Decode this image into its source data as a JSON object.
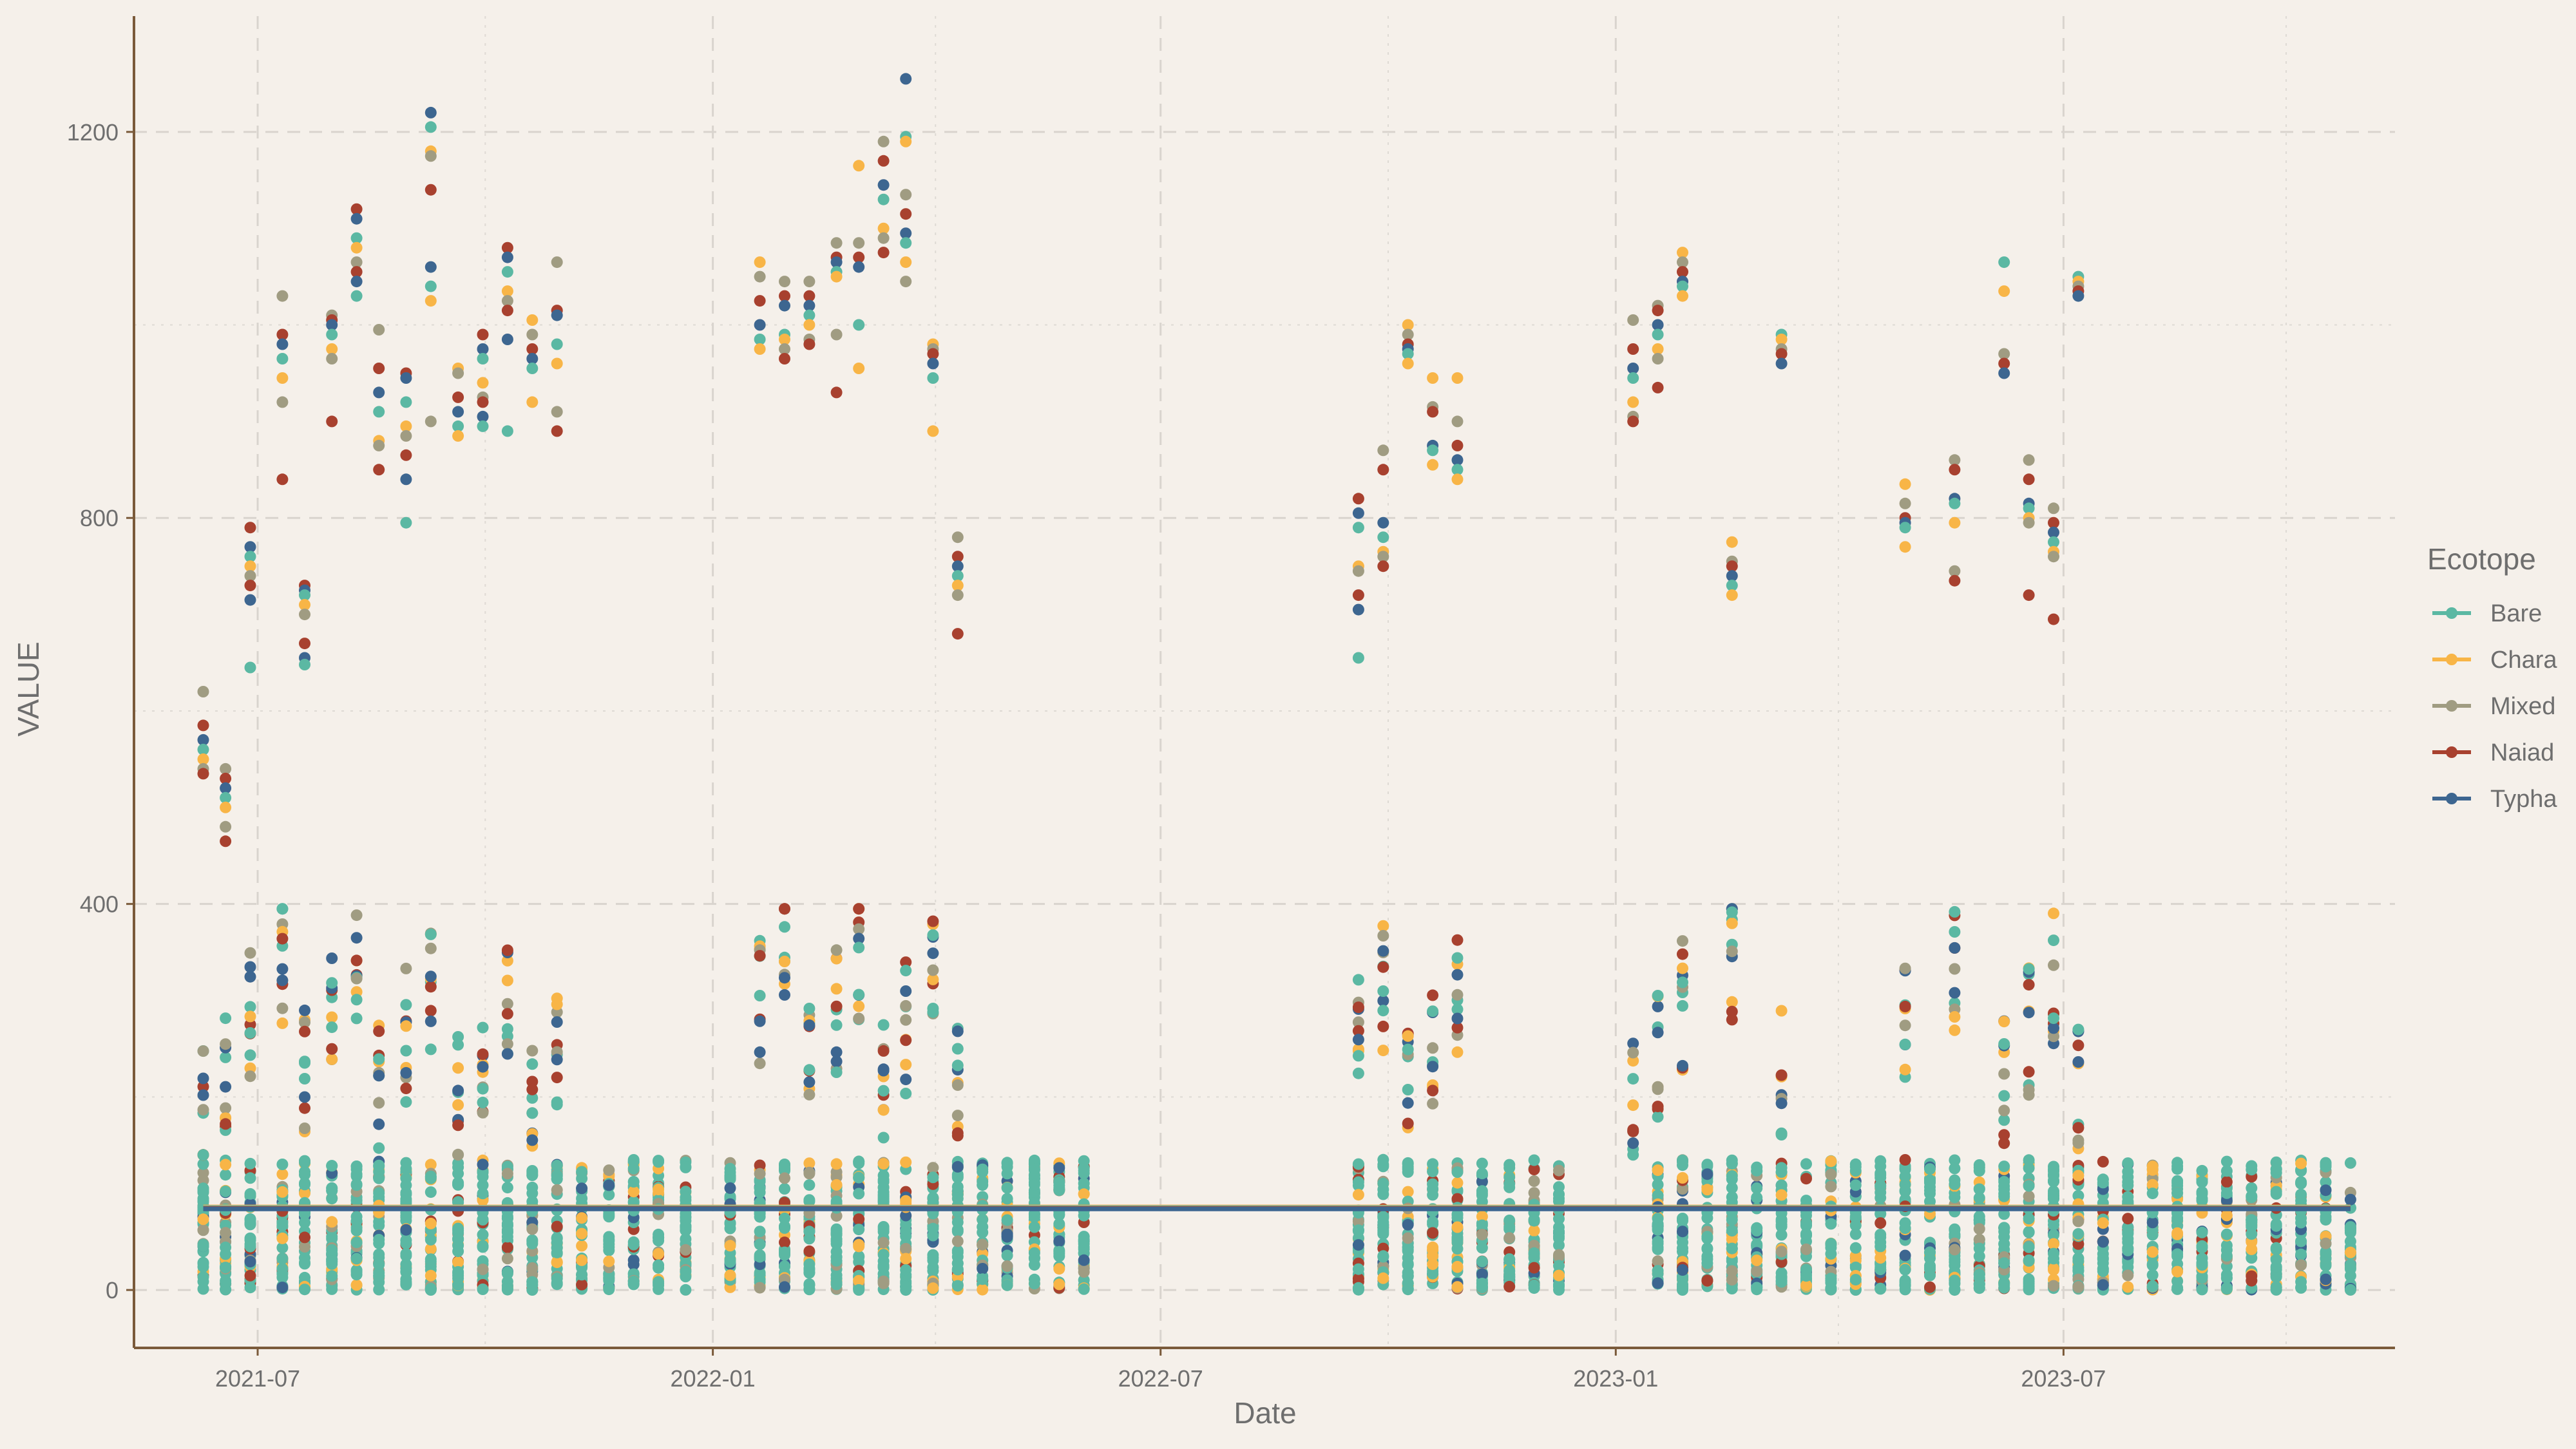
{
  "chart_data": {
    "type": "scatter",
    "xlabel": "Date",
    "ylabel": "VALUE",
    "x_axis_type": "date",
    "xlim": [
      "2021-05-12",
      "2023-11-12"
    ],
    "ylim": [
      -60,
      1320
    ],
    "x_ticks": [
      "2021-07-01",
      "2022-01-01",
      "2022-07-01",
      "2023-01-01",
      "2023-07-01"
    ],
    "x_tick_labels": [
      "2021-07",
      "2022-01",
      "2022-07",
      "2023-01",
      "2023-07"
    ],
    "y_ticks": [
      0,
      400,
      800,
      1200
    ],
    "y_tick_labels": [
      "0",
      "400",
      "800",
      "1200"
    ],
    "grid": true,
    "legend": {
      "title": "Ecotope",
      "position": "right"
    },
    "colors": {
      "Bare": "#5bb8a3",
      "Chara": "#f8b547",
      "Mixed": "#a09c82",
      "Naiad": "#a8412f",
      "Typha": "#3d6690",
      "background": "#f5f0ea",
      "axis": "#7a5a3a"
    },
    "sampling_dates": [
      "2021-06-09",
      "2021-06-18",
      "2021-06-28",
      "2021-07-11",
      "2021-07-20",
      "2021-07-31",
      "2021-08-10",
      "2021-08-19",
      "2021-08-30",
      "2021-09-09",
      "2021-09-20",
      "2021-09-30",
      "2021-10-10",
      "2021-10-20",
      "2021-10-30",
      "2021-11-09",
      "2021-11-20",
      "2021-11-30",
      "2021-12-10",
      "2021-12-21",
      "2022-01-08",
      "2022-01-20",
      "2022-01-30",
      "2022-02-09",
      "2022-02-20",
      "2022-03-01",
      "2022-03-11",
      "2022-03-20",
      "2022-03-31",
      "2022-04-10",
      "2022-04-20",
      "2022-04-30",
      "2022-05-11",
      "2022-05-21",
      "2022-05-31",
      "2022-09-19",
      "2022-09-29",
      "2022-10-09",
      "2022-10-19",
      "2022-10-29",
      "2022-11-08",
      "2022-11-19",
      "2022-11-29",
      "2022-12-09",
      "2023-01-18",
      "2023-01-28",
      "2023-02-07",
      "2023-02-17",
      "2023-02-27",
      "2023-03-09",
      "2023-03-19",
      "2023-03-29",
      "2023-04-08",
      "2023-04-18",
      "2023-04-28",
      "2023-05-08",
      "2023-05-18",
      "2023-05-28",
      "2023-06-07",
      "2023-06-17",
      "2023-06-27",
      "2023-07-07",
      "2023-07-17",
      "2023-07-27",
      "2023-08-06",
      "2023-08-16",
      "2023-08-26",
      "2023-09-05",
      "2023-09-15",
      "2023-09-25",
      "2023-10-05",
      "2023-10-15",
      "2023-10-25"
    ],
    "upper_cluster": [
      {
        "date": "2021-06-09",
        "values": [
          620,
          585,
          570,
          560,
          550,
          540,
          535
        ]
      },
      {
        "date": "2021-06-18",
        "values": [
          540,
          530,
          520,
          510,
          500,
          480,
          465
        ]
      },
      {
        "date": "2021-06-28",
        "values": [
          790,
          770,
          760,
          750,
          740,
          730,
          715,
          645
        ]
      },
      {
        "date": "2021-07-11",
        "values": [
          1030,
          990,
          980,
          965,
          945,
          920,
          840
        ]
      },
      {
        "date": "2021-07-20",
        "values": [
          730,
          725,
          720,
          710,
          700,
          670,
          655,
          648
        ]
      },
      {
        "date": "2021-07-31",
        "values": [
          1010,
          1005,
          1000,
          990,
          975,
          965,
          900
        ]
      },
      {
        "date": "2021-08-10",
        "values": [
          1120,
          1110,
          1090,
          1080,
          1065,
          1055,
          1045,
          1030
        ]
      },
      {
        "date": "2021-08-19",
        "values": [
          995,
          955,
          930,
          910,
          880,
          875,
          850
        ]
      },
      {
        "date": "2021-08-30",
        "values": [
          950,
          945,
          920,
          895,
          885,
          865,
          840,
          795
        ]
      },
      {
        "date": "2021-09-09",
        "values": [
          1220,
          1205,
          1180,
          1175,
          1140,
          1060,
          1040,
          1025,
          900
        ]
      },
      {
        "date": "2021-09-20",
        "values": [
          955,
          950,
          925,
          910,
          895,
          885
        ]
      },
      {
        "date": "2021-09-30",
        "values": [
          990,
          975,
          965,
          940,
          925,
          920,
          905,
          895
        ]
      },
      {
        "date": "2021-10-10",
        "values": [
          1080,
          1070,
          1055,
          1035,
          1025,
          1015,
          985,
          890
        ]
      },
      {
        "date": "2021-10-20",
        "values": [
          1005,
          990,
          975,
          965,
          955,
          920
        ]
      },
      {
        "date": "2021-10-30",
        "values": [
          1065,
          1015,
          1010,
          980,
          960,
          910,
          890
        ]
      },
      {
        "date": "2022-01-20",
        "values": [
          1065,
          1050,
          1025,
          1000,
          985,
          975
        ]
      },
      {
        "date": "2022-01-30",
        "values": [
          1045,
          1030,
          1020,
          990,
          985,
          975,
          965
        ]
      },
      {
        "date": "2022-02-09",
        "values": [
          1045,
          1030,
          1020,
          1010,
          1000,
          985,
          980
        ]
      },
      {
        "date": "2022-02-20",
        "values": [
          1085,
          1070,
          1065,
          1055,
          1050,
          990,
          930
        ]
      },
      {
        "date": "2022-03-01",
        "values": [
          1165,
          1085,
          1070,
          1060,
          1000,
          955
        ]
      },
      {
        "date": "2022-03-11",
        "values": [
          1190,
          1170,
          1145,
          1130,
          1100,
          1090,
          1075
        ]
      },
      {
        "date": "2022-03-20",
        "values": [
          1255,
          1195,
          1190,
          1135,
          1115,
          1095,
          1085,
          1065,
          1045
        ]
      },
      {
        "date": "2022-03-31",
        "values": [
          980,
          975,
          970,
          960,
          945,
          890
        ]
      },
      {
        "date": "2022-04-10",
        "values": [
          780,
          760,
          750,
          740,
          730,
          720,
          680
        ]
      },
      {
        "date": "2022-09-19",
        "values": [
          820,
          805,
          790,
          750,
          745,
          720,
          705,
          655
        ]
      },
      {
        "date": "2022-09-29",
        "values": [
          870,
          850,
          795,
          780,
          765,
          760,
          750
        ]
      },
      {
        "date": "2022-10-09",
        "values": [
          1000,
          990,
          980,
          975,
          970,
          960
        ]
      },
      {
        "date": "2022-10-19",
        "values": [
          945,
          915,
          910,
          875,
          870,
          855
        ]
      },
      {
        "date": "2022-10-29",
        "values": [
          945,
          900,
          875,
          860,
          850,
          840
        ]
      },
      {
        "date": "2023-01-08",
        "values": [
          1005,
          975,
          955,
          945,
          920,
          905,
          900
        ]
      },
      {
        "date": "2023-01-18",
        "values": [
          1020,
          1015,
          1000,
          990,
          975,
          965,
          935
        ]
      },
      {
        "date": "2023-01-28",
        "values": [
          1075,
          1065,
          1055,
          1045,
          1040,
          1030
        ]
      },
      {
        "date": "2023-02-17",
        "values": [
          775,
          755,
          750,
          740,
          730,
          720
        ]
      },
      {
        "date": "2023-03-09",
        "values": [
          990,
          985,
          975,
          970,
          960
        ]
      },
      {
        "date": "2023-04-28",
        "values": [
          835,
          815,
          800,
          795,
          790,
          770
        ]
      },
      {
        "date": "2023-05-18",
        "values": [
          860,
          850,
          820,
          815,
          795,
          745,
          735
        ]
      },
      {
        "date": "2023-06-07",
        "values": [
          1065,
          1035,
          970,
          960,
          950
        ]
      },
      {
        "date": "2023-06-17",
        "values": [
          860,
          840,
          815,
          810,
          800,
          795,
          720
        ]
      },
      {
        "date": "2023-06-27",
        "values": [
          810,
          795,
          785,
          775,
          765,
          760,
          695
        ]
      },
      {
        "date": "2023-07-07",
        "values": [
          1050,
          1045,
          1040,
          1035,
          1030
        ]
      }
    ],
    "mid_cluster_range": [
      140,
      395
    ],
    "low_cluster_range": [
      0,
      135
    ],
    "trend_line": {
      "value": 85,
      "start": "2021-06-09",
      "end": "2023-10-25"
    }
  }
}
